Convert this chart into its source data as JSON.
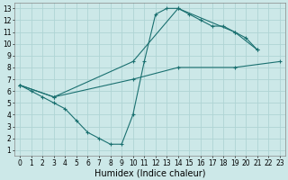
{
  "xlabel": "Humidex (Indice chaleur)",
  "xlim": [
    -0.5,
    23.5
  ],
  "ylim": [
    0.5,
    13.5
  ],
  "xticks": [
    0,
    1,
    2,
    3,
    4,
    5,
    6,
    7,
    8,
    9,
    10,
    11,
    12,
    13,
    14,
    15,
    16,
    17,
    18,
    19,
    20,
    21,
    22,
    23
  ],
  "yticks": [
    1,
    2,
    3,
    4,
    5,
    6,
    7,
    8,
    9,
    10,
    11,
    12,
    13
  ],
  "bg_color": "#cce8e8",
  "grid_color": "#afd4d4",
  "line_color": "#1a7070",
  "series": [
    {
      "x": [
        0,
        1,
        2,
        3,
        4,
        5,
        6,
        7,
        8,
        9,
        10,
        11,
        12,
        13,
        14,
        15,
        16,
        17,
        18,
        19,
        20,
        21
      ],
      "y": [
        6.5,
        6.0,
        5.5,
        5.0,
        4.5,
        3.5,
        2.5,
        2.0,
        1.5,
        1.5,
        4.0,
        8.5,
        12.5,
        13.0,
        13.0,
        12.5,
        12.0,
        11.5,
        11.5,
        11.0,
        10.5,
        9.5
      ]
    },
    {
      "x": [
        0,
        3,
        10,
        14,
        19,
        21
      ],
      "y": [
        6.5,
        5.5,
        8.5,
        13.0,
        11.0,
        9.5
      ]
    },
    {
      "x": [
        0,
        3,
        10,
        14,
        19,
        23
      ],
      "y": [
        6.5,
        5.5,
        7.0,
        8.0,
        8.0,
        8.5
      ]
    }
  ],
  "tick_fontsize": 5.5,
  "label_fontsize": 7,
  "figsize": [
    3.2,
    2.0
  ],
  "dpi": 100
}
